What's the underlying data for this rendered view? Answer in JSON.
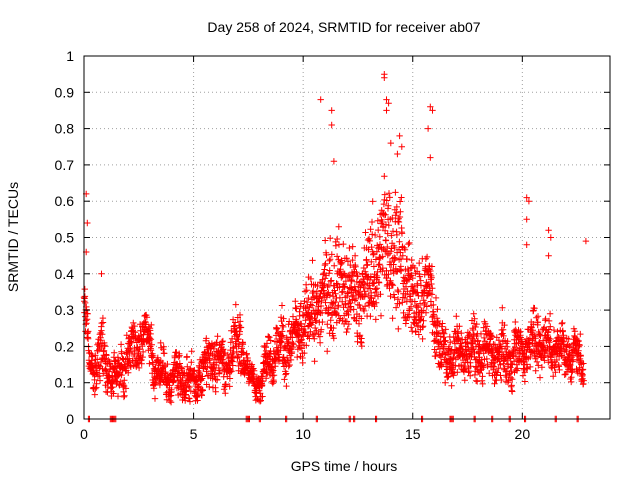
{
  "chart_data": {
    "type": "scatter",
    "title": "Day 258 of 2024, SRMTID for receiver ab07",
    "xlabel": "GPS time / hours",
    "ylabel": "SRMTID / TECUs",
    "xlim": [
      0,
      24
    ],
    "ylim": [
      0,
      1
    ],
    "xticks": [
      0,
      5,
      10,
      15,
      20
    ],
    "xtick_labels": [
      "0",
      "5",
      "10",
      "15",
      "20"
    ],
    "yticks": [
      0,
      0.1,
      0.2,
      0.3,
      0.4,
      0.5,
      0.6,
      0.7,
      0.8,
      0.9,
      1
    ],
    "ytick_labels": [
      "0",
      "0.1",
      "0.2",
      "0.3",
      "0.4",
      "0.5",
      "0.6",
      "0.7",
      "0.8",
      "0.9",
      "1"
    ],
    "grid": true,
    "marker": "plus",
    "color": "#ff0000",
    "zero_markers": [
      0.2,
      1.2,
      1.3,
      1.4,
      7.4,
      7.5,
      8.0,
      9.2,
      10.6,
      12.1,
      12.3,
      13.3,
      15.4,
      16.7,
      16.8,
      17.8,
      18.6,
      19.4,
      20.1,
      21.5,
      22.5
    ],
    "series": [
      {
        "name": "SRMTID",
        "profile": [
          [
            0.0,
            0.32,
            0.07
          ],
          [
            0.3,
            0.13,
            0.03
          ],
          [
            0.8,
            0.18,
            0.08
          ],
          [
            1.5,
            0.1,
            0.04
          ],
          [
            2.0,
            0.18,
            0.06
          ],
          [
            2.8,
            0.24,
            0.05
          ],
          [
            3.3,
            0.14,
            0.05
          ],
          [
            4.0,
            0.1,
            0.05
          ],
          [
            4.5,
            0.12,
            0.05
          ],
          [
            5.0,
            0.09,
            0.04
          ],
          [
            5.8,
            0.17,
            0.06
          ],
          [
            6.5,
            0.15,
            0.06
          ],
          [
            7.2,
            0.22,
            0.07
          ],
          [
            7.5,
            0.11,
            0.03
          ],
          [
            8.0,
            0.1,
            0.03
          ],
          [
            8.5,
            0.18,
            0.06
          ],
          [
            9.5,
            0.21,
            0.07
          ],
          [
            10.5,
            0.3,
            0.09
          ],
          [
            11.5,
            0.38,
            0.12
          ],
          [
            12.5,
            0.33,
            0.11
          ],
          [
            13.0,
            0.38,
            0.12
          ],
          [
            13.8,
            0.5,
            0.15
          ],
          [
            14.3,
            0.46,
            0.15
          ],
          [
            15.0,
            0.32,
            0.1
          ],
          [
            15.8,
            0.36,
            0.1
          ],
          [
            16.3,
            0.17,
            0.06
          ],
          [
            17.5,
            0.19,
            0.06
          ],
          [
            18.5,
            0.18,
            0.06
          ],
          [
            19.5,
            0.17,
            0.06
          ],
          [
            20.5,
            0.21,
            0.06
          ],
          [
            21.5,
            0.2,
            0.06
          ],
          [
            22.5,
            0.17,
            0.05
          ],
          [
            22.8,
            0.16,
            0.05
          ]
        ],
        "spikes": [
          [
            0.1,
            0.62
          ],
          [
            0.15,
            0.54
          ],
          [
            0.1,
            0.46
          ],
          [
            0.8,
            0.4
          ],
          [
            10.8,
            0.88
          ],
          [
            11.3,
            0.85
          ],
          [
            11.3,
            0.81
          ],
          [
            11.4,
            0.71
          ],
          [
            13.7,
            0.95
          ],
          [
            13.7,
            0.94
          ],
          [
            13.8,
            0.88
          ],
          [
            13.9,
            0.87
          ],
          [
            13.8,
            0.85
          ],
          [
            14.0,
            0.76
          ],
          [
            14.4,
            0.78
          ],
          [
            14.5,
            0.75
          ],
          [
            14.3,
            0.73
          ],
          [
            15.8,
            0.86
          ],
          [
            15.9,
            0.85
          ],
          [
            15.7,
            0.8
          ],
          [
            15.8,
            0.72
          ],
          [
            20.2,
            0.61
          ],
          [
            20.3,
            0.6
          ],
          [
            20.2,
            0.55
          ],
          [
            20.2,
            0.48
          ],
          [
            21.2,
            0.52
          ],
          [
            21.3,
            0.5
          ],
          [
            21.2,
            0.45
          ],
          [
            22.9,
            0.49
          ]
        ]
      }
    ]
  }
}
